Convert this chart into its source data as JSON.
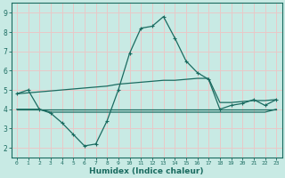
{
  "xlabel": "Humidex (Indice chaleur)",
  "background_color": "#c8eae4",
  "grid_color": "#e8c8c8",
  "line_color": "#1a6b60",
  "xlim": [
    -0.5,
    23.5
  ],
  "ylim": [
    1.5,
    9.5
  ],
  "xticks": [
    0,
    1,
    2,
    3,
    4,
    5,
    6,
    7,
    8,
    9,
    10,
    11,
    12,
    13,
    14,
    15,
    16,
    17,
    18,
    19,
    20,
    21,
    22,
    23
  ],
  "yticks": [
    2,
    3,
    4,
    5,
    6,
    7,
    8,
    9
  ],
  "line1_x": [
    0,
    1,
    2,
    3,
    4,
    5,
    6,
    7,
    8,
    9,
    10,
    11,
    12,
    13,
    14,
    15,
    16,
    17,
    18,
    19,
    20,
    21,
    22,
    23
  ],
  "line1_y": [
    4.8,
    5.0,
    4.0,
    3.8,
    3.3,
    2.7,
    2.1,
    2.2,
    3.4,
    5.0,
    6.9,
    8.2,
    8.3,
    8.8,
    7.7,
    6.5,
    5.9,
    5.55,
    4.0,
    4.2,
    4.3,
    4.5,
    4.2,
    4.5
  ],
  "line2_x": [
    0,
    1,
    2,
    3,
    4,
    5,
    6,
    7,
    8,
    9,
    10,
    11,
    12,
    13,
    14,
    15,
    16,
    17,
    18,
    19,
    20,
    21,
    22,
    23
  ],
  "line2_y": [
    4.0,
    4.0,
    4.0,
    4.0,
    4.0,
    4.0,
    4.0,
    4.0,
    4.0,
    4.0,
    4.0,
    4.0,
    4.0,
    4.0,
    4.0,
    4.0,
    4.0,
    4.0,
    4.0,
    4.0,
    4.0,
    4.0,
    4.0,
    4.0
  ],
  "line3_x": [
    0,
    1,
    2,
    3,
    4,
    5,
    6,
    7,
    8,
    9,
    10,
    11,
    12,
    13,
    14,
    15,
    16,
    17,
    18,
    19,
    20,
    21,
    22,
    23
  ],
  "line3_y": [
    4.8,
    4.85,
    4.9,
    4.95,
    5.0,
    5.05,
    5.1,
    5.15,
    5.2,
    5.3,
    5.35,
    5.4,
    5.45,
    5.5,
    5.5,
    5.55,
    5.6,
    5.6,
    4.35,
    4.35,
    4.4,
    4.45,
    4.45,
    4.5
  ],
  "line4_x": [
    0,
    2,
    3,
    4,
    5,
    6,
    7,
    8,
    9,
    10,
    11,
    12,
    13,
    14,
    15,
    16,
    17,
    18,
    19,
    20,
    21,
    22,
    23
  ],
  "line4_y": [
    4.0,
    4.0,
    3.85,
    3.85,
    3.85,
    3.85,
    3.85,
    3.85,
    3.85,
    3.85,
    3.85,
    3.85,
    3.85,
    3.85,
    3.85,
    3.85,
    3.85,
    3.85,
    3.85,
    3.85,
    3.85,
    3.85,
    4.0
  ]
}
